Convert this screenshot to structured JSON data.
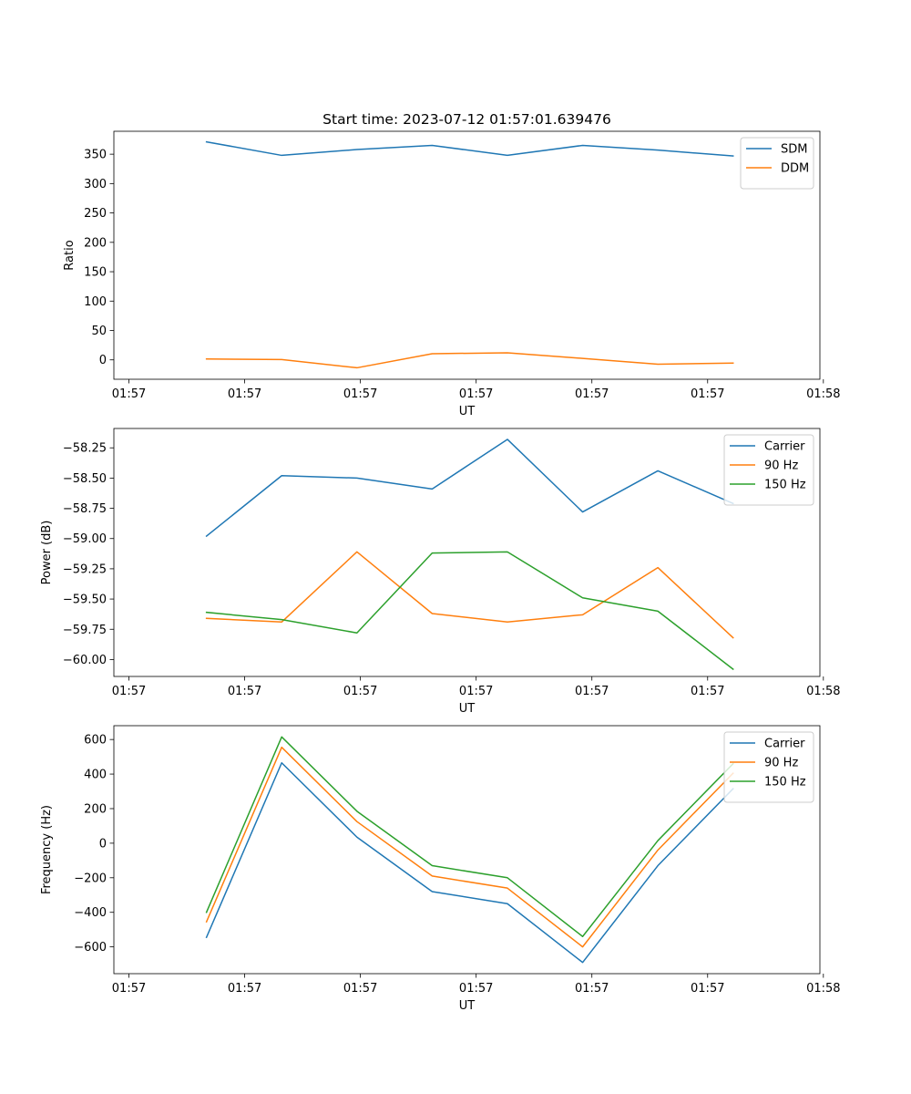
{
  "figure": {
    "title": "Start time: 2023-07-12 01:57:01.639476"
  },
  "chart_data": [
    {
      "type": "line",
      "title": "Start time: 2023-07-12 01:57:01.639476",
      "xlabel": "UT",
      "ylabel": "Ratio",
      "x": [
        0.8,
        1.45,
        2.1,
        2.75,
        3.4,
        4.05,
        4.7,
        5.35
      ],
      "xlim": [
        0,
        6.1
      ],
      "xticks": [
        0.13,
        1.13,
        2.13,
        3.13,
        4.13,
        5.13,
        6.13
      ],
      "xtick_labels": [
        "01:57",
        "01:57",
        "01:57",
        "01:57",
        "01:57",
        "01:57",
        "01:58"
      ],
      "ylim": [
        -33,
        389
      ],
      "yticks": [
        0,
        50,
        100,
        150,
        200,
        250,
        300,
        350
      ],
      "ytick_labels": [
        "0",
        "50",
        "100",
        "150",
        "200",
        "250",
        "300",
        "350"
      ],
      "grid": false,
      "legend_position": "top-right",
      "series": [
        {
          "name": "SDM",
          "color": "#1f77b4",
          "values": [
            371,
            348,
            358,
            365,
            348,
            365,
            357,
            347
          ]
        },
        {
          "name": "DDM",
          "color": "#ff7f0e",
          "values": [
            1.5,
            0.5,
            -13.5,
            10.5,
            12,
            2.5,
            -7.5,
            -5.5
          ]
        }
      ]
    },
    {
      "type": "line",
      "title": "",
      "xlabel": "UT",
      "ylabel": "Power (dB)",
      "x": [
        0.8,
        1.45,
        2.1,
        2.75,
        3.4,
        4.05,
        4.7,
        5.35
      ],
      "xlim": [
        0,
        6.1
      ],
      "xticks": [
        0.13,
        1.13,
        2.13,
        3.13,
        4.13,
        5.13,
        6.13
      ],
      "xtick_labels": [
        "01:57",
        "01:57",
        "01:57",
        "01:57",
        "01:57",
        "01:57",
        "01:58"
      ],
      "ylim": [
        -60.14,
        -58.09
      ],
      "yticks": [
        -60.0,
        -59.75,
        -59.5,
        -59.25,
        -59.0,
        -58.75,
        -58.5,
        -58.25
      ],
      "ytick_labels": [
        "−60.00",
        "−59.75",
        "−59.50",
        "−59.25",
        "−59.00",
        "−58.75",
        "−58.50",
        "−58.25"
      ],
      "grid": false,
      "legend_position": "top-right",
      "series": [
        {
          "name": "Carrier",
          "color": "#1f77b4",
          "values": [
            -58.98,
            -58.48,
            -58.5,
            -58.59,
            -58.18,
            -58.78,
            -58.44,
            -58.71
          ]
        },
        {
          "name": "90 Hz",
          "color": "#ff7f0e",
          "values": [
            -59.66,
            -59.69,
            -59.11,
            -59.62,
            -59.69,
            -59.63,
            -59.24,
            -59.82
          ]
        },
        {
          "name": "150 Hz",
          "color": "#2ca02c",
          "values": [
            -59.61,
            -59.67,
            -59.78,
            -59.12,
            -59.11,
            -59.49,
            -59.6,
            -60.08
          ]
        }
      ]
    },
    {
      "type": "line",
      "title": "",
      "xlabel": "UT",
      "ylabel": "Frequency (Hz)",
      "x": [
        0.8,
        1.45,
        2.1,
        2.75,
        3.4,
        4.05,
        4.7,
        5.35
      ],
      "xlim": [
        0,
        6.1
      ],
      "xticks": [
        0.13,
        1.13,
        2.13,
        3.13,
        4.13,
        5.13,
        6.13
      ],
      "xtick_labels": [
        "01:57",
        "01:57",
        "01:57",
        "01:57",
        "01:57",
        "01:57",
        "01:58"
      ],
      "ylim": [
        -755,
        680
      ],
      "yticks": [
        -600,
        -400,
        -200,
        0,
        200,
        400,
        600
      ],
      "ytick_labels": [
        "−600",
        "−400",
        "−200",
        "0",
        "200",
        "400",
        "600"
      ],
      "grid": false,
      "legend_position": "top-right",
      "series": [
        {
          "name": "Carrier",
          "color": "#1f77b4",
          "values": [
            -545,
            465,
            35,
            -280,
            -350,
            -690,
            -130,
            315
          ]
        },
        {
          "name": "90 Hz",
          "color": "#ff7f0e",
          "values": [
            -455,
            555,
            125,
            -190,
            -260,
            -600,
            -40,
            405
          ]
        },
        {
          "name": "150 Hz",
          "color": "#2ca02c",
          "values": [
            -400,
            615,
            185,
            -130,
            -200,
            -540,
            15,
            460
          ]
        }
      ]
    }
  ]
}
